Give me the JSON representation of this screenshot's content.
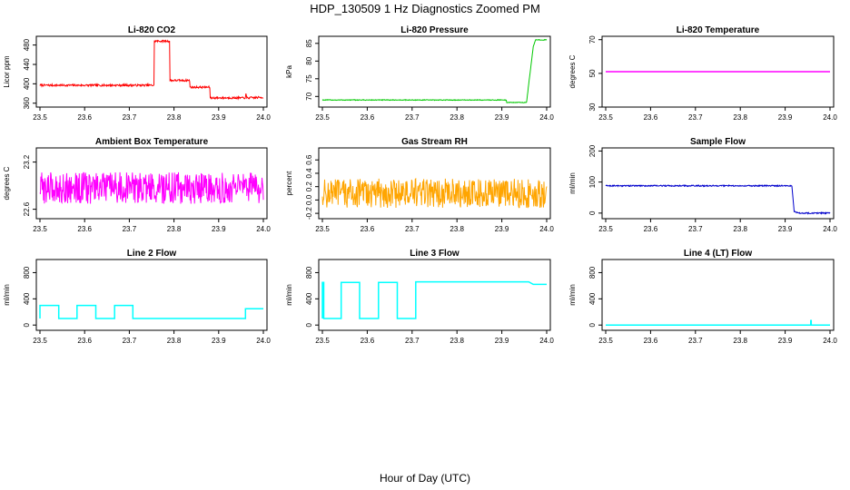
{
  "title": "HDP_130509  1 Hz Diagnostics Zoomed PM",
  "xlabel": "Hour of Day (UTC)",
  "chart_data": [
    {
      "type": "line",
      "title": "Li-820 CO2",
      "ylabel": "Licor ppm",
      "color": "#ff0000",
      "xlim": [
        23.5,
        24.0
      ],
      "ylim": [
        352,
        498
      ],
      "xticks": [
        "23.5",
        "23.6",
        "23.7",
        "23.8",
        "23.9",
        "24.0"
      ],
      "yticks": [
        "360",
        "400",
        "440",
        "480"
      ],
      "series": [
        {
          "x": [
            23.5,
            23.755,
            23.755,
            23.79,
            23.79,
            23.835,
            23.835,
            23.88,
            23.88,
            23.96,
            23.96,
            23.963,
            23.963,
            24.0
          ],
          "y": [
            397,
            397,
            488,
            488,
            407,
            407,
            393,
            393,
            371,
            371,
            382,
            371,
            371,
            372
          ],
          "noise": 2
        }
      ]
    },
    {
      "type": "line",
      "title": "Li-820 Pressure",
      "ylabel": "kPa",
      "color": "#00c800",
      "xlim": [
        23.5,
        24.0
      ],
      "ylim": [
        67,
        87
      ],
      "xticks": [
        "23.5",
        "23.6",
        "23.7",
        "23.8",
        "23.9",
        "24.0"
      ],
      "yticks": [
        "70",
        "75",
        "80",
        "85"
      ],
      "series": [
        {
          "x": [
            23.5,
            23.91,
            23.91,
            23.955,
            23.97,
            23.975,
            24.0
          ],
          "y": [
            69,
            69,
            68.3,
            68.3,
            84,
            86,
            86
          ],
          "noise": 0.1
        }
      ]
    },
    {
      "type": "line",
      "title": "Li-820 Temperature",
      "ylabel": "degrees C",
      "color": "#ff00ff",
      "xlim": [
        23.5,
        24.0
      ],
      "ylim": [
        30,
        72
      ],
      "xticks": [
        "23.5",
        "23.6",
        "23.7",
        "23.8",
        "23.9",
        "24.0"
      ],
      "yticks": [
        "30",
        "50",
        "70"
      ],
      "series": [
        {
          "x": [
            23.5,
            24.0
          ],
          "y": [
            51,
            51
          ],
          "noise": 0
        }
      ]
    },
    {
      "type": "line",
      "title": "Ambient Box Temperature",
      "ylabel": "degrees C",
      "color": "#ff00ff",
      "xlim": [
        23.5,
        24.0
      ],
      "ylim": [
        22.48,
        23.38
      ],
      "xticks": [
        "23.5",
        "23.6",
        "23.7",
        "23.8",
        "23.9",
        "24.0"
      ],
      "yticks": [
        "22.6",
        "23.2"
      ],
      "series": [
        {
          "x": [
            23.5,
            24.0
          ],
          "y": [
            22.87,
            22.87
          ],
          "noise": 0.2
        }
      ]
    },
    {
      "type": "line",
      "title": "Gas Stream RH",
      "ylabel": "percent",
      "color": "#ffa500",
      "xlim": [
        23.5,
        24.0
      ],
      "ylim": [
        -0.28,
        0.78
      ],
      "xticks": [
        "23.5",
        "23.6",
        "23.7",
        "23.8",
        "23.9",
        "24.0"
      ],
      "yticks": [
        "-0.2",
        "0.0",
        "0.2",
        "0.4",
        "0.6"
      ],
      "series": [
        {
          "x": [
            23.5,
            24.0
          ],
          "y": [
            0.1,
            0.1
          ],
          "noise": 0.22
        }
      ]
    },
    {
      "type": "line",
      "title": "Sample Flow",
      "ylabel": "ml/min",
      "color": "#0000cc",
      "xlim": [
        23.5,
        24.0
      ],
      "ylim": [
        -18,
        210
      ],
      "xticks": [
        "23.5",
        "23.6",
        "23.7",
        "23.8",
        "23.9",
        "24.0"
      ],
      "yticks": [
        "0",
        "100",
        "200"
      ],
      "series": [
        {
          "x": [
            23.5,
            23.915,
            23.92,
            23.93,
            24.0
          ],
          "y": [
            88,
            88,
            5,
            0,
            0
          ],
          "noise": 2
        }
      ]
    },
    {
      "type": "line",
      "title": "Line 2 Flow",
      "ylabel": "ml/min",
      "color": "#00ffff",
      "xlim": [
        23.5,
        24.0
      ],
      "ylim": [
        -80,
        1000
      ],
      "xticks": [
        "23.5",
        "23.6",
        "23.7",
        "23.8",
        "23.9",
        "24.0"
      ],
      "yticks": [
        "0",
        "400",
        "800"
      ],
      "series": [
        {
          "x": [
            23.5,
            23.5,
            23.542,
            23.542,
            23.583,
            23.583,
            23.625,
            23.625,
            23.667,
            23.667,
            23.708,
            23.708,
            23.96,
            23.96,
            24.0
          ],
          "y": [
            100,
            300,
            300,
            100,
            100,
            300,
            300,
            100,
            100,
            300,
            300,
            100,
            100,
            250,
            250
          ],
          "noise": 0
        }
      ]
    },
    {
      "type": "line",
      "title": "Line 3 Flow",
      "ylabel": "ml/min",
      "color": "#00ffff",
      "xlim": [
        23.5,
        24.0
      ],
      "ylim": [
        -80,
        1000
      ],
      "xticks": [
        "23.5",
        "23.6",
        "23.7",
        "23.8",
        "23.9",
        "24.0"
      ],
      "yticks": [
        "0",
        "400",
        "800"
      ],
      "series": [
        {
          "x": [
            23.5,
            23.5,
            23.503,
            23.503,
            23.542,
            23.542,
            23.583,
            23.583,
            23.625,
            23.625,
            23.667,
            23.667,
            23.708,
            23.708,
            23.96,
            23.97,
            24.0
          ],
          "y": [
            100,
            650,
            650,
            100,
            100,
            650,
            650,
            100,
            100,
            650,
            650,
            100,
            100,
            660,
            660,
            620,
            620
          ],
          "noise": 0
        }
      ]
    },
    {
      "type": "line",
      "title": "Line 4 (LT) Flow",
      "ylabel": "ml/min",
      "color": "#00ffff",
      "xlim": [
        23.5,
        24.0
      ],
      "ylim": [
        -80,
        1000
      ],
      "xticks": [
        "23.5",
        "23.6",
        "23.7",
        "23.8",
        "23.9",
        "24.0"
      ],
      "yticks": [
        "0",
        "400",
        "800"
      ],
      "series": [
        {
          "x": [
            23.5,
            23.957,
            23.957,
            23.958,
            23.958,
            24.0
          ],
          "y": [
            0,
            0,
            70,
            70,
            0,
            0
          ],
          "noise": 0
        }
      ]
    }
  ]
}
